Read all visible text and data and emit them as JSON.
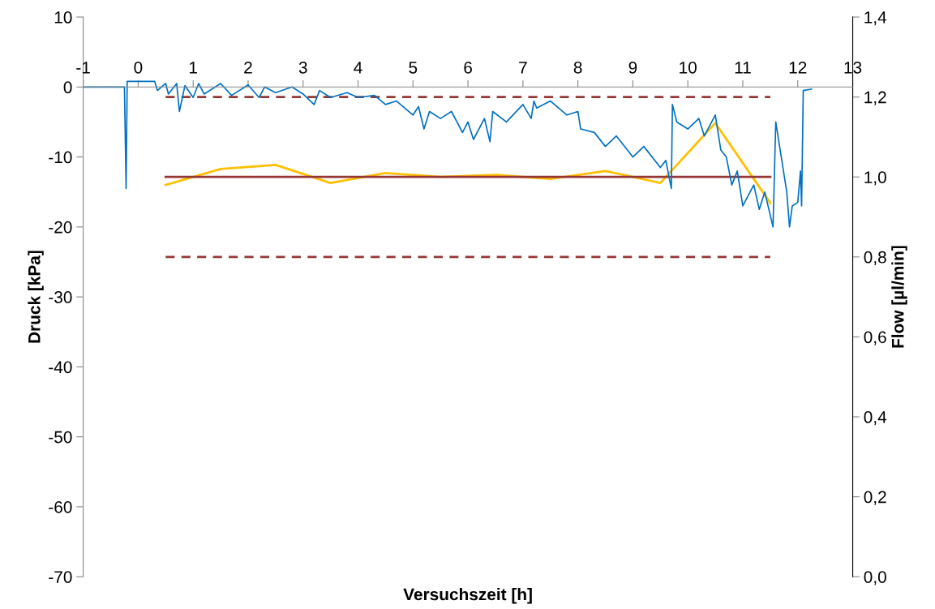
{
  "chart_data": {
    "type": "line",
    "xlabel": "Versuchszeit [h]",
    "ylabel": "Druck [kPa]",
    "y2label": "Flow [µl/min]",
    "xlim": [
      -1,
      13
    ],
    "xticks": [
      -1,
      0,
      1,
      2,
      3,
      4,
      5,
      6,
      7,
      8,
      9,
      10,
      11,
      12,
      13
    ],
    "ylim": [
      -70,
      10
    ],
    "yticks": [
      -70,
      -60,
      -50,
      -40,
      -30,
      -20,
      -10,
      0,
      10
    ],
    "y2lim": [
      0,
      1.4
    ],
    "y2ticks": [
      {
        "value": 0,
        "label": "0,0"
      },
      {
        "value": 0.2,
        "label": "0,2"
      },
      {
        "value": 0.4,
        "label": "0,4"
      },
      {
        "value": 0.6,
        "label": "0,6"
      },
      {
        "value": 0.8,
        "label": "0,8"
      },
      {
        "value": 1.0,
        "label": "1,0"
      },
      {
        "value": 1.2,
        "label": "1,2"
      },
      {
        "value": 1.4,
        "label": "1,4"
      }
    ],
    "grid": false,
    "legend": false,
    "marker": "none",
    "series": [
      {
        "color": "#0070c0",
        "x": [
          -1,
          -0.25,
          -0.22,
          -0.2,
          0.3,
          0.35,
          0.5,
          0.55,
          0.7,
          0.75,
          0.85,
          1.0,
          1.1,
          1.2,
          1.5,
          1.7,
          2.0,
          2.2,
          2.3,
          2.5,
          2.8,
          3.0,
          3.2,
          3.3,
          3.5,
          3.8,
          4.0,
          4.3,
          4.5,
          4.7,
          5.0,
          5.1,
          5.2,
          5.3,
          5.5,
          5.7,
          5.9,
          6.0,
          6.1,
          6.3,
          6.4,
          6.45,
          6.7,
          7.0,
          7.15,
          7.2,
          7.25,
          7.5,
          7.8,
          8.0,
          8.05,
          8.3,
          8.5,
          8.7,
          9.0,
          9.2,
          9.5,
          9.6,
          9.7,
          9.72,
          9.8,
          10.0,
          10.2,
          10.3,
          10.5,
          10.6,
          10.7,
          10.8,
          10.9,
          11.0,
          11.2,
          11.3,
          11.4,
          11.55,
          11.6,
          11.7,
          11.8,
          11.85,
          11.9,
          12.0,
          12.05,
          12.07,
          12.1,
          12.25
        ],
        "values": [
          0,
          0,
          -14.5,
          0.8,
          0.8,
          -0.5,
          0.5,
          -1.0,
          0.5,
          -3.5,
          0.2,
          -1.5,
          0.5,
          -1.0,
          0.5,
          -1.2,
          0.3,
          -1.5,
          0,
          -0.8,
          0,
          -1.0,
          -2.5,
          -0.5,
          -1.5,
          -0.8,
          -1.5,
          -1.2,
          -2.5,
          -2.0,
          -4.0,
          -2.8,
          -6.0,
          -3.5,
          -4.5,
          -3.5,
          -6.5,
          -5.0,
          -7.5,
          -4.5,
          -7.8,
          -3.5,
          -5.0,
          -2.5,
          -4.5,
          -2.0,
          -3.0,
          -2.0,
          -4.0,
          -3.5,
          -6.0,
          -6.5,
          -8.5,
          -7.0,
          -10.0,
          -8.5,
          -11.5,
          -10.5,
          -14.5,
          -2.5,
          -5.0,
          -6.0,
          -4.5,
          -7.0,
          -4.0,
          -9.0,
          -10.0,
          -14.0,
          -12.0,
          -17.0,
          -14.0,
          -17.5,
          -15.0,
          -20.0,
          -5.0,
          -10.0,
          -15.0,
          -20.0,
          -17.0,
          -16.5,
          -12.0,
          -17.0,
          -0.5,
          -0.3
        ]
      },
      {
        "color": "#ffc000",
        "axis": "y2",
        "x": [
          0.5,
          1.5,
          2.5,
          3.5,
          4.5,
          5.5,
          6.5,
          7.5,
          8.5,
          9.5,
          10.5,
          11.5
        ],
        "values": [
          0.98,
          1.02,
          1.03,
          0.985,
          1.01,
          1.0,
          1.005,
          0.995,
          1.015,
          0.985,
          1.135,
          0.935
        ]
      },
      {
        "color": "#953735",
        "axis": "y2",
        "line_style": "dashed",
        "x": [
          0.5,
          11.5
        ],
        "values": [
          1.2,
          1.2
        ]
      },
      {
        "color": "#953735",
        "axis": "y2",
        "line_style": "solid",
        "x": [
          0.5,
          11.5
        ],
        "values": [
          1.0,
          1.0
        ]
      },
      {
        "color": "#953735",
        "axis": "y2",
        "line_style": "dashed",
        "x": [
          0.5,
          11.5
        ],
        "values": [
          0.8,
          0.8
        ]
      }
    ]
  }
}
